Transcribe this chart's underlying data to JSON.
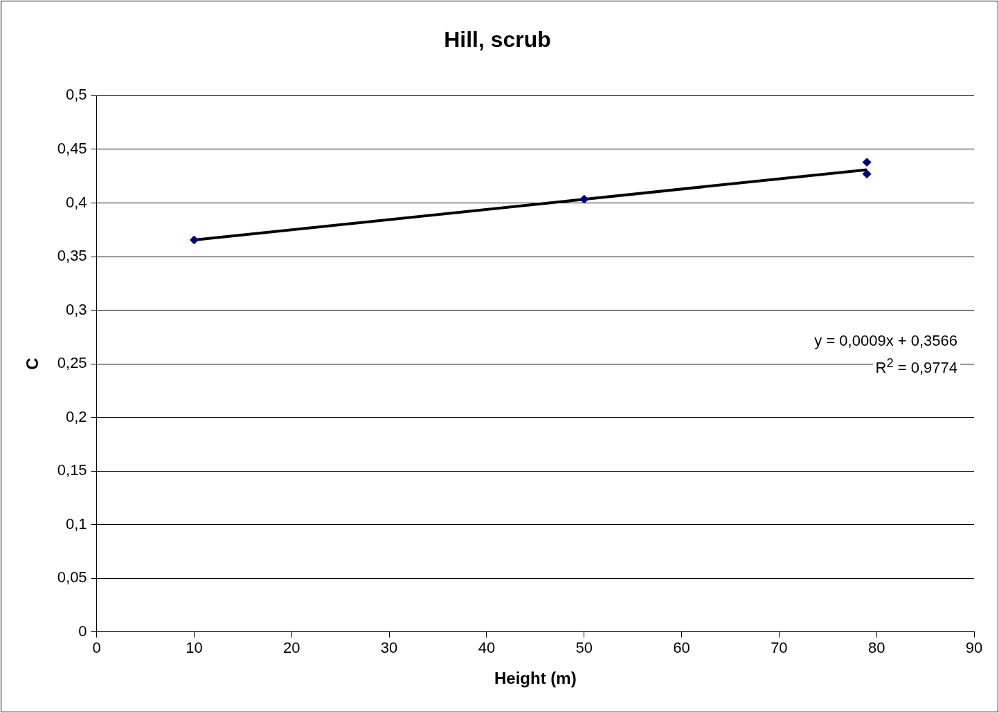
{
  "chart_data": {
    "type": "scatter",
    "title": "Hill, scrub",
    "xlabel": "Height (m)",
    "ylabel": "C",
    "series": [
      {
        "color": "#000080",
        "marker": "diamond",
        "x": [
          10,
          50,
          79,
          79
        ],
        "values": [
          0.3655,
          0.4035,
          0.438,
          0.427
        ]
      },
      {
        "type": "line",
        "color": "#000000",
        "marker": "none",
        "x": [
          10,
          79
        ],
        "values": [
          0.3655,
          0.431
        ]
      }
    ],
    "xlim": [
      0,
      90
    ],
    "xticks": [
      0,
      10,
      20,
      30,
      40,
      50,
      60,
      70,
      80,
      90
    ],
    "ylim": [
      0,
      0.5
    ],
    "yticks": [
      {
        "value": 0,
        "label": "0"
      },
      {
        "value": 0.05,
        "label": "0,05"
      },
      {
        "value": 0.1,
        "label": "0,1"
      },
      {
        "value": 0.15,
        "label": "0,15"
      },
      {
        "value": 0.2,
        "label": "0,2"
      },
      {
        "value": 0.25,
        "label": "0,25"
      },
      {
        "value": 0.3,
        "label": "0,3"
      },
      {
        "value": 0.35,
        "label": "0,35"
      },
      {
        "value": 0.4,
        "label": "0,4"
      },
      {
        "value": 0.45,
        "label": "0,45"
      },
      {
        "value": 0.5,
        "label": "0,5"
      }
    ],
    "grid": "y",
    "legend": false,
    "annotations": [
      "y = 0,0009x + 0,3566",
      "R$^{2}$ = 0,9774"
    ]
  }
}
